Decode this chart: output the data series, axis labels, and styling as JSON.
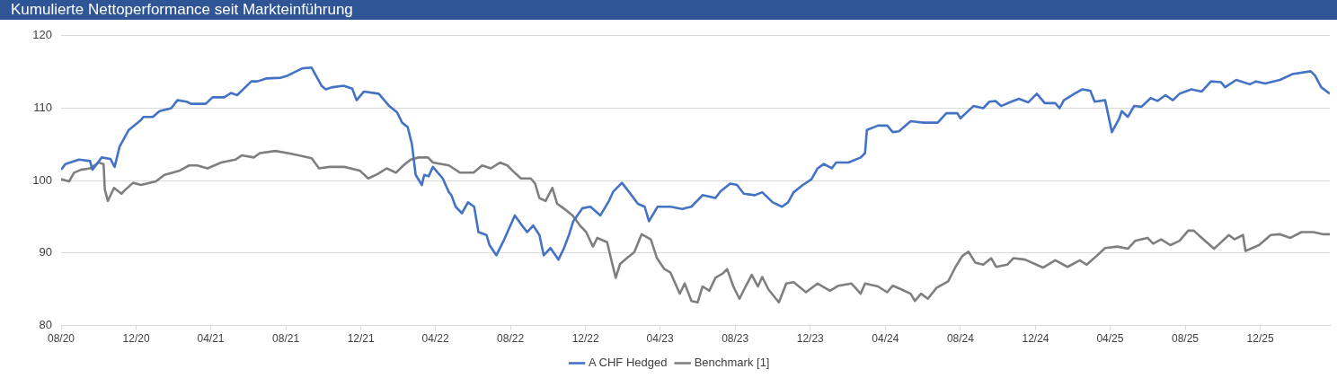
{
  "chart_data": {
    "type": "line",
    "title": "Kumulierte Nettoperformance seit Markteinführung",
    "xlim": [
      "2020-08",
      "2026-03-24"
    ],
    "xticks": [
      {
        "value": "2020-08",
        "label": "08/20"
      },
      {
        "value": "2020-12",
        "label": "12/20"
      },
      {
        "value": "2021-04",
        "label": "04/21"
      },
      {
        "value": "2021-08",
        "label": "08/21"
      },
      {
        "value": "2021-12",
        "label": "12/21"
      },
      {
        "value": "2022-04",
        "label": "04/22"
      },
      {
        "value": "2022-08",
        "label": "08/22"
      },
      {
        "value": "2022-12",
        "label": "12/22"
      },
      {
        "value": "2023-04",
        "label": "04/23"
      },
      {
        "value": "2023-08",
        "label": "08/23"
      },
      {
        "value": "2023-12",
        "label": "12/23"
      },
      {
        "value": "2024-04",
        "label": "04/24"
      },
      {
        "value": "2024-08",
        "label": "08/24"
      },
      {
        "value": "2024-12",
        "label": "12/24"
      },
      {
        "value": "2025-04",
        "label": "04/25"
      },
      {
        "value": "2025-08",
        "label": "08/25"
      },
      {
        "value": "2025-12",
        "label": "12/25"
      }
    ],
    "ylim": [
      80,
      120
    ],
    "yticks": [
      80,
      90,
      100,
      110,
      120
    ],
    "grid": "y",
    "legend": "bottom",
    "marker": "none",
    "line_style": "solid",
    "series": [
      {
        "name": "A CHF Hedged",
        "color": "#4472c4",
        "x": [
          "2020-08-01",
          "2020-08-08",
          "2020-08-30",
          "2020-09-17",
          "2020-09-21",
          "2020-10-06",
          "2020-10-20",
          "2020-10-27",
          "2020-11-04",
          "2020-11-19",
          "2020-12-09",
          "2020-12-13",
          "2020-12-28",
          "2021-01-08",
          "2021-01-27",
          "2021-02-06",
          "2021-02-21",
          "2021-02-28",
          "2021-03-24",
          "2021-04-04",
          "2021-04-23",
          "2021-05-04",
          "2021-05-14",
          "2021-06-06",
          "2021-06-16",
          "2021-06-30",
          "2021-07-24",
          "2021-08-04",
          "2021-08-28",
          "2021-09-12",
          "2021-09-28",
          "2021-10-05",
          "2021-10-16",
          "2021-11-03",
          "2021-11-17",
          "2021-11-24",
          "2021-12-06",
          "2021-12-30",
          "2022-01-16",
          "2022-01-29",
          "2022-02-06",
          "2022-02-15",
          "2022-02-22",
          "2022-02-28",
          "2022-03-10",
          "2022-03-14",
          "2022-03-21",
          "2022-03-28",
          "2022-04-13",
          "2022-04-23",
          "2022-04-27",
          "2022-05-04",
          "2022-05-14",
          "2022-05-24",
          "2022-06-03",
          "2022-06-10",
          "2022-06-23",
          "2022-06-28",
          "2022-07-09",
          "2022-07-22",
          "2022-08-08",
          "2022-08-18",
          "2022-08-28",
          "2022-09-07",
          "2022-09-17",
          "2022-09-24",
          "2022-10-05",
          "2022-10-18",
          "2022-10-27",
          "2022-11-04",
          "2022-11-11",
          "2022-11-26",
          "2022-12-09",
          "2022-12-25",
          "2023-01-08",
          "2023-01-15",
          "2023-01-29",
          "2023-02-10",
          "2023-02-24",
          "2023-03-07",
          "2023-03-14",
          "2023-03-28",
          "2023-04-18",
          "2023-05-07",
          "2023-05-22",
          "2023-06-09",
          "2023-06-30",
          "2023-07-08",
          "2023-07-24",
          "2023-08-04",
          "2023-08-15",
          "2023-09-02",
          "2023-09-14",
          "2023-10-01",
          "2023-10-16",
          "2023-10-26",
          "2023-11-04",
          "2023-11-19",
          "2023-12-03",
          "2023-12-13",
          "2023-12-23",
          "2024-01-05",
          "2024-01-12",
          "2024-02-01",
          "2024-02-21",
          "2024-02-28",
          "2024-03-02",
          "2024-03-20",
          "2024-04-04",
          "2024-04-13",
          "2024-04-23",
          "2024-05-12",
          "2024-06-02",
          "2024-06-25",
          "2024-07-09",
          "2024-07-27",
          "2024-08-01",
          "2024-08-22",
          "2024-09-07",
          "2024-09-17",
          "2024-09-27",
          "2024-10-06",
          "2024-10-20",
          "2024-11-04",
          "2024-11-19",
          "2024-12-03",
          "2024-12-16",
          "2025-01-02",
          "2025-01-09",
          "2025-01-16",
          "2025-02-04",
          "2025-02-15",
          "2025-02-28",
          "2025-03-07",
          "2025-03-24",
          "2025-04-04",
          "2025-04-16",
          "2025-04-20",
          "2025-04-30",
          "2025-05-10",
          "2025-05-22",
          "2025-06-06",
          "2025-06-17",
          "2025-06-30",
          "2025-07-12",
          "2025-07-23",
          "2025-08-11",
          "2025-08-28",
          "2025-09-12",
          "2025-09-28",
          "2025-10-05",
          "2025-10-23",
          "2025-11-14",
          "2025-11-24",
          "2025-12-09",
          "2026-01-02",
          "2026-01-22",
          "2026-02-21",
          "2026-02-28",
          "2026-03-10",
          "2026-03-24"
        ],
        "values": [
          101.5,
          102.3,
          102.9,
          102.7,
          101.5,
          103.2,
          103,
          101.9,
          104.7,
          107,
          108.4,
          108.8,
          108.8,
          109.6,
          110,
          111.1,
          110.9,
          110.6,
          110.6,
          111.5,
          111.5,
          112.1,
          111.8,
          113.7,
          113.7,
          114.1,
          114.2,
          114.5,
          115.5,
          115.6,
          113.1,
          112.6,
          112.9,
          113.1,
          112.7,
          111.1,
          112.3,
          112,
          110.3,
          109.4,
          108,
          107.4,
          105,
          100.8,
          99.4,
          100.8,
          100.6,
          101.9,
          100.3,
          98.4,
          98,
          96.4,
          95.5,
          97,
          96.4,
          92.9,
          92.5,
          91.1,
          89.7,
          91.9,
          95.2,
          94,
          92.9,
          93.8,
          92.5,
          89.7,
          90.7,
          89.1,
          90.7,
          92.5,
          94.4,
          96.2,
          96.4,
          95.2,
          97.2,
          98.5,
          99.7,
          98.4,
          96.8,
          96.4,
          94.4,
          96.4,
          96.4,
          96.1,
          96.4,
          98,
          97.6,
          98.5,
          99.6,
          99.4,
          98.2,
          98,
          98.4,
          97,
          96.4,
          97,
          98.4,
          99.4,
          100.2,
          101.7,
          102.3,
          101.7,
          102.5,
          102.5,
          103.2,
          103.8,
          107,
          107.6,
          107.6,
          106.7,
          106.8,
          108.2,
          108,
          108,
          109.3,
          109.3,
          108.6,
          110.3,
          110,
          110.9,
          111,
          110.3,
          110.8,
          111.3,
          110.8,
          112,
          110.7,
          110.7,
          110,
          111.1,
          112.1,
          112.6,
          112.4,
          110.9,
          111.1,
          106.7,
          108.6,
          109.6,
          108.8,
          110.3,
          110.2,
          111.4,
          111,
          111.8,
          111.1,
          112,
          112.6,
          112.3,
          113.7,
          113.6,
          112.9,
          113.9,
          113.3,
          113.7,
          113.4,
          113.9,
          114.7,
          115.1,
          114.5,
          112.9,
          112
        ]
      },
      {
        "name": "Benchmark [1]",
        "color": "#7f7f7f",
        "x": [
          "2020-08-01",
          "2020-08-14",
          "2020-08-22",
          "2020-09-02",
          "2020-09-17",
          "2020-10-01",
          "2020-10-09",
          "2020-10-11",
          "2020-10-16",
          "2020-10-26",
          "2020-11-07",
          "2020-11-14",
          "2020-11-26",
          "2020-12-09",
          "2021-01-02",
          "2021-01-16",
          "2021-02-10",
          "2021-02-25",
          "2021-03-10",
          "2021-03-27",
          "2021-04-18",
          "2021-05-11",
          "2021-05-22",
          "2021-06-10",
          "2021-06-20",
          "2021-07-15",
          "2021-08-04",
          "2021-08-22",
          "2021-09-12",
          "2021-09-24",
          "2021-10-11",
          "2021-11-04",
          "2021-11-29",
          "2021-12-13",
          "2021-12-28",
          "2022-01-12",
          "2022-01-27",
          "2022-02-08",
          "2022-02-20",
          "2022-03-05",
          "2022-03-20",
          "2022-03-28",
          "2022-04-23",
          "2022-05-11",
          "2022-06-02",
          "2022-06-16",
          "2022-06-30",
          "2022-07-15",
          "2022-07-27",
          "2022-08-04",
          "2022-08-18",
          "2022-09-03",
          "2022-09-10",
          "2022-09-17",
          "2022-09-27",
          "2022-10-08",
          "2022-10-16",
          "2022-10-26",
          "2022-11-10",
          "2022-11-22",
          "2022-12-02",
          "2022-12-13",
          "2022-12-20",
          "2023-01-05",
          "2023-01-12",
          "2023-01-19",
          "2023-01-26",
          "2023-02-06",
          "2023-02-18",
          "2023-03-02",
          "2023-03-17",
          "2023-03-27",
          "2023-04-08",
          "2023-04-18",
          "2023-05-03",
          "2023-05-11",
          "2023-05-22",
          "2023-06-01",
          "2023-06-09",
          "2023-06-20",
          "2023-06-30",
          "2023-07-12",
          "2023-07-19",
          "2023-07-29",
          "2023-08-08",
          "2023-08-18",
          "2023-08-28",
          "2023-09-07",
          "2023-09-14",
          "2023-09-24",
          "2023-10-11",
          "2023-10-23",
          "2023-11-04",
          "2023-11-24",
          "2023-12-13",
          "2024-01-02",
          "2024-01-16",
          "2024-02-06",
          "2024-02-21",
          "2024-02-28",
          "2024-03-20",
          "2024-04-04",
          "2024-04-13",
          "2024-04-27",
          "2024-05-12",
          "2024-05-19",
          "2024-05-29",
          "2024-06-09",
          "2024-06-23",
          "2024-07-12",
          "2024-07-24",
          "2024-08-04",
          "2024-08-14",
          "2024-08-25",
          "2024-09-07",
          "2024-09-20",
          "2024-09-28",
          "2024-10-16",
          "2024-10-26",
          "2024-11-14",
          "2024-12-13",
          "2025-01-02",
          "2025-01-22",
          "2025-02-11",
          "2025-02-22",
          "2025-03-10",
          "2025-03-24",
          "2025-04-13",
          "2025-04-30",
          "2025-05-12",
          "2025-06-01",
          "2025-06-10",
          "2025-06-23",
          "2025-07-08",
          "2025-07-23",
          "2025-08-06",
          "2025-08-15",
          "2025-08-28",
          "2025-09-17",
          "2025-09-27",
          "2025-10-11",
          "2025-10-20",
          "2025-11-03",
          "2025-11-07",
          "2025-11-29",
          "2025-12-18",
          "2026-01-02",
          "2026-01-19",
          "2026-02-06",
          "2026-02-25",
          "2026-03-14",
          "2026-03-24"
        ],
        "values": [
          100.2,
          99.9,
          101.1,
          101.5,
          101.7,
          102.5,
          102.3,
          98.8,
          97.2,
          99,
          98.2,
          98.8,
          99.7,
          99.4,
          99.9,
          100.8,
          101.4,
          102.1,
          102.1,
          101.7,
          102.5,
          102.9,
          103.5,
          103.2,
          103.8,
          104.1,
          103.8,
          103.5,
          103.1,
          101.7,
          101.9,
          101.9,
          101.4,
          100.3,
          100.9,
          101.7,
          101.1,
          102.1,
          102.9,
          103.2,
          103.2,
          102.5,
          102.1,
          101.1,
          101.1,
          102.1,
          101.7,
          102.5,
          102.1,
          101.4,
          100.3,
          100.3,
          99.6,
          97.6,
          97.2,
          99,
          96.8,
          96.2,
          95.2,
          93.8,
          92.9,
          90.9,
          92.1,
          91.5,
          89,
          86.6,
          88.5,
          89.3,
          90.1,
          92.6,
          91.9,
          89.3,
          87.8,
          87.3,
          84.4,
          85.8,
          83.4,
          83.2,
          85.4,
          84.8,
          86.6,
          87.2,
          87.8,
          85.4,
          83.7,
          85.4,
          87,
          85.4,
          86.7,
          85,
          83.2,
          85.8,
          86,
          84.6,
          85.8,
          84.8,
          85.5,
          85.8,
          84.4,
          85.8,
          85.4,
          84.6,
          85.5,
          85,
          84.4,
          83.4,
          84.4,
          83.7,
          85.2,
          86.1,
          88.1,
          89.6,
          90.2,
          88.7,
          88.4,
          89.3,
          88.1,
          88.4,
          89.3,
          89.1,
          88,
          89,
          88.1,
          89,
          88.4,
          89.6,
          90.7,
          90.9,
          90.6,
          91.7,
          92.1,
          91.3,
          91.9,
          91.1,
          91.7,
          93.1,
          93.1,
          92.1,
          90.6,
          91.4,
          92.5,
          91.9,
          92.5,
          90.3,
          91.1,
          92.5,
          92.6,
          92.1,
          92.9,
          92.9,
          92.6,
          92.6
        ]
      }
    ]
  }
}
